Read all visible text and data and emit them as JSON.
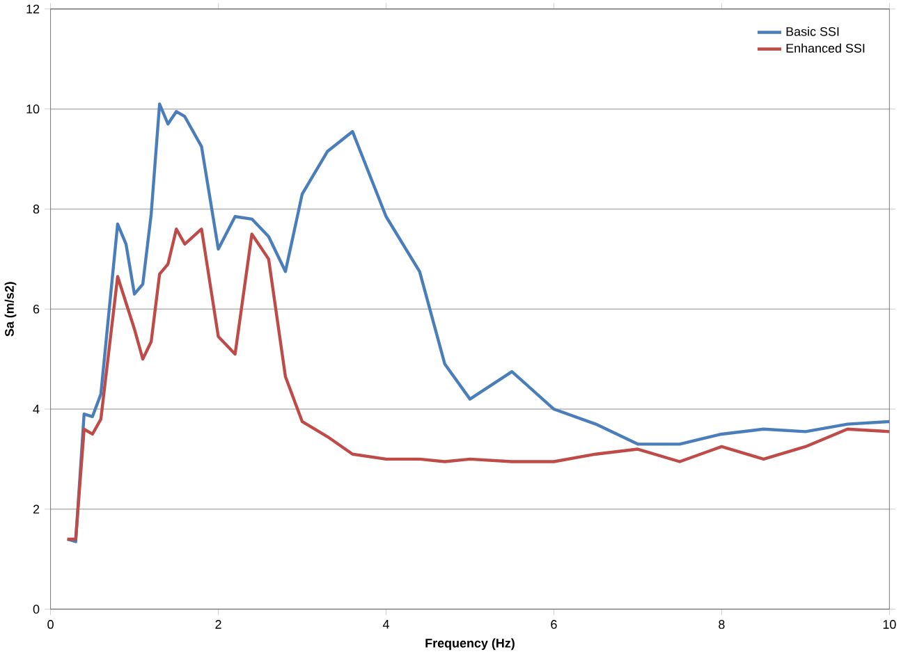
{
  "chart_data": {
    "type": "line",
    "xlabel": "Frequency (Hz)",
    "ylabel": "Sa (m/s2)",
    "xlim": [
      0,
      10
    ],
    "ylim": [
      0,
      12
    ],
    "xticks": [
      0,
      2,
      4,
      6,
      8,
      10
    ],
    "yticks": [
      0,
      2,
      4,
      6,
      8,
      10,
      12
    ],
    "grid": "y",
    "legend": "top right",
    "marker": "none",
    "line_style": "solid",
    "series": [
      {
        "name": "Basic SSI",
        "color": "#4a7ebb",
        "x": [
          0.2,
          0.3,
          0.4,
          0.5,
          0.6,
          0.8,
          0.9,
          1.0,
          1.1,
          1.2,
          1.3,
          1.4,
          1.5,
          1.6,
          1.8,
          2.0,
          2.2,
          2.4,
          2.6,
          2.8,
          3.0,
          3.3,
          3.6,
          4.0,
          4.4,
          4.7,
          5.0,
          5.5,
          6.0,
          6.5,
          7.0,
          7.5,
          8.0,
          8.5,
          9.0,
          9.5,
          10
        ],
        "values": [
          1.4,
          1.35,
          3.9,
          3.85,
          4.3,
          7.7,
          7.3,
          6.3,
          6.5,
          7.9,
          10.1,
          9.7,
          9.95,
          9.85,
          9.25,
          7.2,
          7.85,
          7.8,
          7.45,
          6.75,
          8.3,
          9.15,
          9.55,
          7.85,
          6.75,
          4.9,
          4.2,
          4.75,
          4.0,
          3.7,
          3.3,
          3.3,
          3.5,
          3.6,
          3.55,
          3.7,
          3.75
        ]
      },
      {
        "name": "Enhanced SSI",
        "color": "#be4b48",
        "x": [
          0.2,
          0.3,
          0.4,
          0.5,
          0.6,
          0.8,
          1.0,
          1.1,
          1.2,
          1.3,
          1.4,
          1.5,
          1.6,
          1.8,
          2.0,
          2.2,
          2.4,
          2.6,
          2.8,
          3.0,
          3.3,
          3.6,
          4.0,
          4.4,
          4.7,
          5.0,
          5.5,
          6.0,
          6.5,
          7.0,
          7.5,
          8.0,
          8.5,
          9.0,
          9.5,
          10
        ],
        "values": [
          1.4,
          1.4,
          3.6,
          3.5,
          3.8,
          6.65,
          5.6,
          5.0,
          5.35,
          6.7,
          6.9,
          7.6,
          7.3,
          7.6,
          5.45,
          5.1,
          7.5,
          7.0,
          4.65,
          3.75,
          3.45,
          3.1,
          3.0,
          3.0,
          2.95,
          3.0,
          2.95,
          2.95,
          3.1,
          3.2,
          2.95,
          3.25,
          3.0,
          3.25,
          3.6,
          3.55
        ]
      }
    ]
  }
}
